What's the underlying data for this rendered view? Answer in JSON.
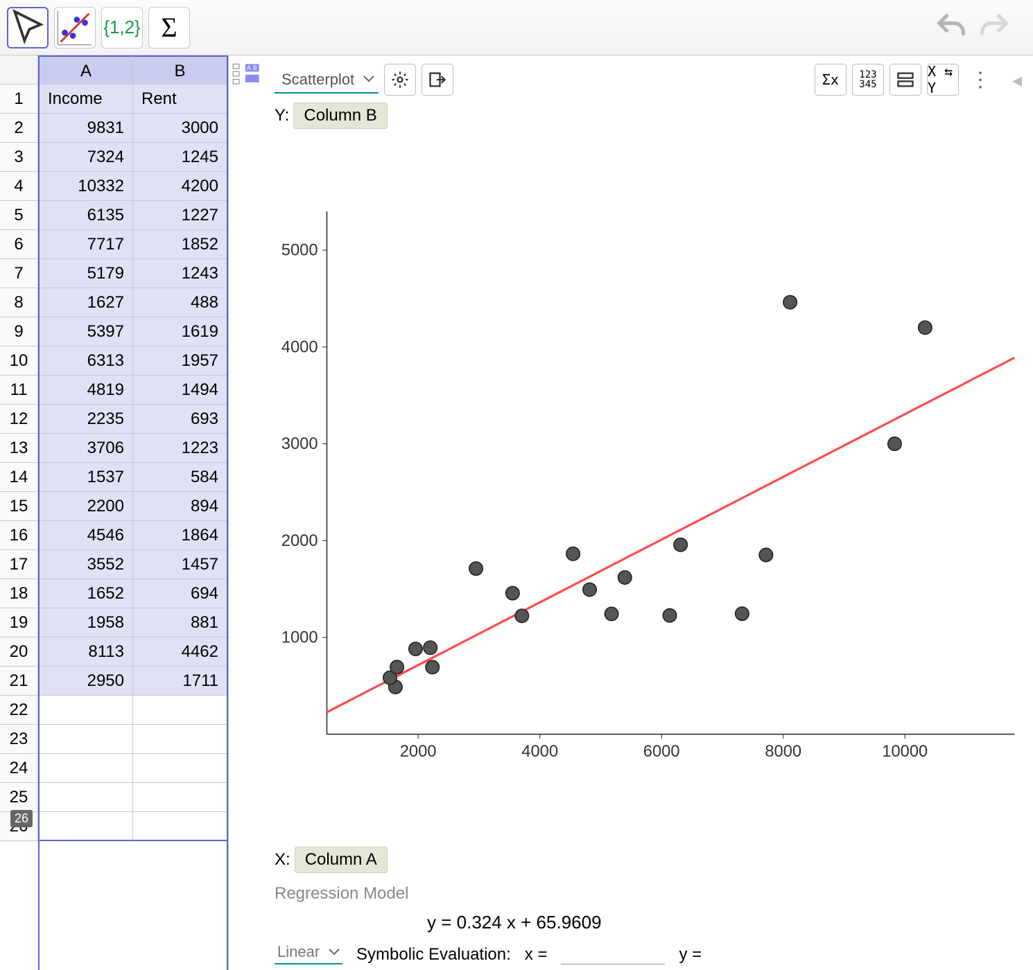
{
  "toolbar": {
    "tools": [
      "pointer",
      "scatter",
      "list",
      "sigma"
    ],
    "list_label": "{1,2}",
    "sigma_label": "Σ"
  },
  "sheet": {
    "col_headers": [
      "A",
      "B"
    ],
    "row1": [
      "Income",
      "Rent"
    ],
    "rows": [
      [
        9831,
        3000
      ],
      [
        7324,
        1245
      ],
      [
        10332,
        4200
      ],
      [
        6135,
        1227
      ],
      [
        7717,
        1852
      ],
      [
        5179,
        1243
      ],
      [
        1627,
        488
      ],
      [
        5397,
        1619
      ],
      [
        6313,
        1957
      ],
      [
        4819,
        1494
      ],
      [
        2235,
        693
      ],
      [
        3706,
        1223
      ],
      [
        1537,
        584
      ],
      [
        2200,
        894
      ],
      [
        4546,
        1864
      ],
      [
        3552,
        1457
      ],
      [
        1652,
        694
      ],
      [
        1958,
        881
      ],
      [
        8113,
        4462
      ],
      [
        2950,
        1711
      ]
    ],
    "empty_rows": 5,
    "row_count_badge": "26"
  },
  "plot": {
    "type_selected": "Scatterplot",
    "swap_label": "X ⇆ Y",
    "y_axis_prefix": "Y:",
    "y_axis_label": "Column B",
    "x_axis_prefix": "X:",
    "x_axis_label": "Column A",
    "chart": {
      "type": "scatter",
      "x_ticks": [
        2000,
        4000,
        6000,
        8000,
        10000
      ],
      "y_ticks": [
        1000,
        2000,
        3000,
        4000,
        5000
      ],
      "xlim": [
        500,
        11800
      ],
      "ylim": [
        0,
        5400
      ],
      "point_color": "#555555",
      "point_stroke": "#222222",
      "point_radius": 9,
      "grid": false,
      "regression_line": {
        "slope": 0.324,
        "intercept": 65.9609,
        "color": "#ff4d4d",
        "width": 3
      }
    }
  },
  "regression": {
    "section_title": "Regression Model",
    "equation": "y = 0.324 x + 65.9609",
    "model_selected": "Linear",
    "symbolic_label": "Symbolic Evaluation:",
    "x_label": "x =",
    "y_label": "y ="
  }
}
